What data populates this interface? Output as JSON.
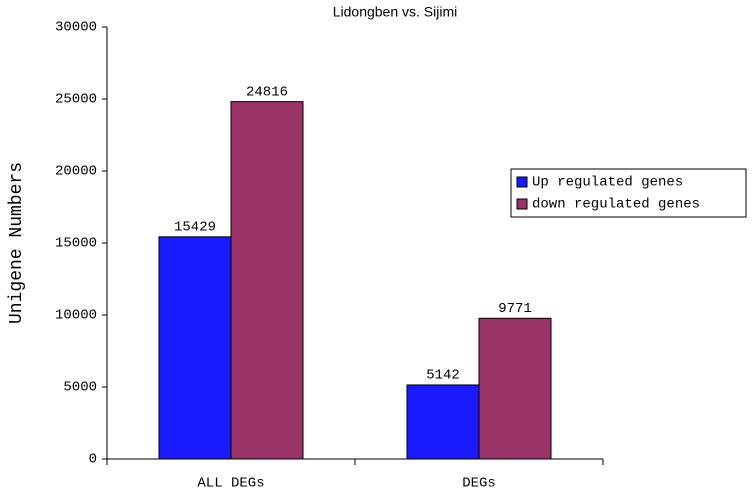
{
  "chart_data": {
    "type": "bar",
    "title": "Lidongben vs. Sijimi",
    "y_label": "Unigene Numbers",
    "categories": [
      "ALL DEGs",
      "DEGs"
    ],
    "series": [
      {
        "name": "Up regulated genes",
        "color": "#1a1aff",
        "values": [
          15429,
          5142
        ]
      },
      {
        "name": "down regulated genes",
        "color": "#993366",
        "values": [
          24816,
          9771
        ]
      }
    ],
    "ylim": [
      0,
      30000
    ],
    "yticks": [
      0,
      5000,
      10000,
      15000,
      20000,
      25000,
      30000
    ],
    "grid": false,
    "legend": "right",
    "data_labels": true
  }
}
